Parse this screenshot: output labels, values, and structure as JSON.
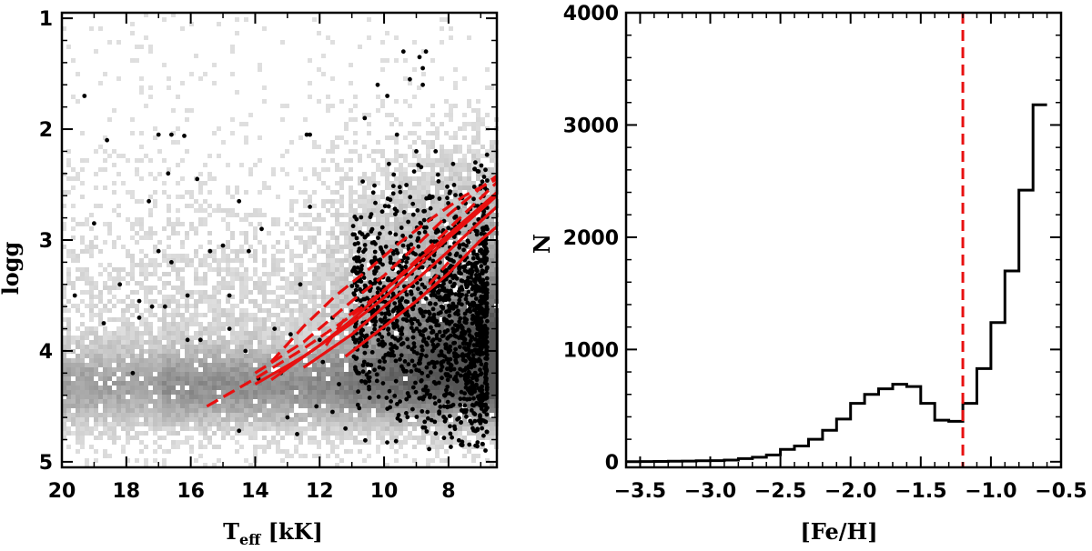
{
  "chart_data": [
    {
      "type": "scatter",
      "panel": "left",
      "xlabel_main": "T",
      "xlabel_sub": "eff",
      "xlabel_unit": " [kK]",
      "ylabel": "logg",
      "xlim": [
        20,
        6.5
      ],
      "ylim": [
        5.05,
        0.95
      ],
      "x_reversed": true,
      "y_reversed": true,
      "xticks": [
        20,
        18,
        16,
        14,
        12,
        10,
        8
      ],
      "yticks": [
        1,
        2,
        3,
        4,
        5
      ],
      "background": "grayscale 2D density histogram of full sample",
      "point_color": "#000000",
      "line_color": "#e81010",
      "sparse_points": [
        [
          19.3,
          1.7
        ],
        [
          18.6,
          2.1
        ],
        [
          17.0,
          2.05
        ],
        [
          16.6,
          2.05
        ],
        [
          16.2,
          2.06
        ],
        [
          17.3,
          2.65
        ],
        [
          16.7,
          2.4
        ],
        [
          15.8,
          2.45
        ],
        [
          19.0,
          2.85
        ],
        [
          17.0,
          3.1
        ],
        [
          14.5,
          2.65
        ],
        [
          13.8,
          2.9
        ],
        [
          12.4,
          2.05
        ],
        [
          12.3,
          2.05
        ],
        [
          12.3,
          2.7
        ],
        [
          15.0,
          3.05
        ],
        [
          19.6,
          3.5
        ],
        [
          18.2,
          3.4
        ],
        [
          17.6,
          3.55
        ],
        [
          16.1,
          3.5
        ],
        [
          16.8,
          3.6
        ],
        [
          17.2,
          3.6
        ],
        [
          18.7,
          3.75
        ],
        [
          17.8,
          4.2
        ],
        [
          16.1,
          3.9
        ],
        [
          15.7,
          3.9
        ],
        [
          14.8,
          3.5
        ],
        [
          14.2,
          3.1
        ],
        [
          14.8,
          3.8
        ],
        [
          14.3,
          4.0
        ],
        [
          13.9,
          4.25
        ],
        [
          13.4,
          3.8
        ],
        [
          13.2,
          4.2
        ],
        [
          12.9,
          3.85
        ],
        [
          12.6,
          3.4
        ],
        [
          12.0,
          3.9
        ],
        [
          11.6,
          3.7
        ],
        [
          11.9,
          4.1
        ],
        [
          11.4,
          4.3
        ],
        [
          14.5,
          4.72
        ],
        [
          13.0,
          4.6
        ],
        [
          12.7,
          4.75
        ],
        [
          12.1,
          4.5
        ],
        [
          11.6,
          4.55
        ],
        [
          11.2,
          4.7
        ],
        [
          15.4,
          3.1
        ],
        [
          16.6,
          3.2
        ],
        [
          17.6,
          3.7
        ]
      ],
      "dense_region": {
        "teff_range": [
          6.8,
          11.0
        ],
        "logg_range": [
          2.2,
          4.9
        ]
      },
      "top_points": [
        [
          9.4,
          1.3
        ],
        [
          8.9,
          1.35
        ],
        [
          8.7,
          1.3
        ],
        [
          8.8,
          1.45
        ],
        [
          8.8,
          1.6
        ],
        [
          9.2,
          1.55
        ],
        [
          10.2,
          1.6
        ],
        [
          10.6,
          1.9
        ],
        [
          9.9,
          1.7
        ],
        [
          8.4,
          2.2
        ],
        [
          9.6,
          2.05
        ],
        [
          9.0,
          2.2
        ]
      ],
      "curves": [
        {
          "style": "dashed",
          "points": [
            [
              15.5,
              4.5
            ],
            [
              14.0,
              4.25
            ],
            [
              12.5,
              3.98
            ],
            [
              11.0,
              3.68
            ],
            [
              10.0,
              3.45
            ],
            [
              9.0,
              3.18
            ],
            [
              8.0,
              2.9
            ],
            [
              7.0,
              2.62
            ],
            [
              6.5,
              2.48
            ]
          ]
        },
        {
          "style": "dashed",
          "points": [
            [
              14.0,
              4.2
            ],
            [
              12.5,
              3.92
            ],
            [
              11.0,
              3.55
            ],
            [
              10.0,
              3.32
            ],
            [
              9.0,
              3.05
            ],
            [
              8.0,
              2.77
            ],
            [
              7.0,
              2.53
            ],
            [
              6.5,
              2.42
            ]
          ]
        },
        {
          "style": "dashed",
          "points": [
            [
              13.5,
              4.1
            ],
            [
              12.5,
              3.78
            ],
            [
              11.5,
              3.5
            ],
            [
              10.5,
              3.27
            ],
            [
              9.5,
              3.02
            ],
            [
              8.5,
              2.8
            ],
            [
              7.5,
              2.6
            ],
            [
              6.5,
              2.45
            ]
          ]
        },
        {
          "style": "solid",
          "points": [
            [
              14.0,
              4.3
            ],
            [
              12.5,
              4.05
            ],
            [
              11.0,
              3.75
            ],
            [
              10.0,
              3.52
            ],
            [
              9.0,
              3.25
            ],
            [
              8.0,
              2.98
            ],
            [
              7.0,
              2.73
            ],
            [
              6.5,
              2.6
            ]
          ]
        },
        {
          "style": "solid",
          "points": [
            [
              13.5,
              4.26
            ],
            [
              12.0,
              3.95
            ],
            [
              11.0,
              3.72
            ],
            [
              10.0,
              3.46
            ],
            [
              9.0,
              3.2
            ],
            [
              8.0,
              2.95
            ],
            [
              7.0,
              2.7
            ],
            [
              6.5,
              2.57
            ]
          ]
        },
        {
          "style": "solid",
          "points": [
            [
              12.5,
              4.15
            ],
            [
              11.0,
              3.85
            ],
            [
              10.0,
              3.6
            ],
            [
              9.0,
              3.36
            ],
            [
              8.0,
              3.1
            ],
            [
              7.0,
              2.83
            ],
            [
              6.5,
              2.7
            ]
          ]
        },
        {
          "style": "solid",
          "points": [
            [
              11.2,
              4.05
            ],
            [
              10.0,
              3.78
            ],
            [
              9.0,
              3.55
            ],
            [
              8.0,
              3.3
            ],
            [
              7.0,
              3.0
            ],
            [
              6.5,
              2.88
            ]
          ]
        },
        {
          "style": "dashed",
          "points": [
            [
              11.8,
              3.95
            ],
            [
              11.2,
              3.7
            ],
            [
              10.6,
              3.58
            ]
          ]
        },
        {
          "style": "dashed",
          "points": [
            [
              8.6,
              3.4
            ],
            [
              8.3,
              3.3
            ],
            [
              8.0,
              3.2
            ]
          ]
        }
      ]
    },
    {
      "type": "histogram",
      "panel": "right",
      "xlabel": "[Fe/H]",
      "ylabel": "N",
      "xlim": [
        -3.6,
        -0.5
      ],
      "ylim": [
        -50,
        4000
      ],
      "xticks": [
        -3.5,
        -3.0,
        -2.5,
        -2.0,
        -1.5,
        -1.0,
        -0.5
      ],
      "xtick_labels": [
        "−3.5",
        "−3.0",
        "−2.5",
        "−2.0",
        "−1.5",
        "−1.0",
        "−0.5"
      ],
      "yticks": [
        0,
        1000,
        2000,
        3000,
        4000
      ],
      "bin_width": 0.1,
      "bin_start": -3.6,
      "counts": [
        0,
        2,
        3,
        5,
        6,
        8,
        10,
        15,
        28,
        40,
        60,
        110,
        140,
        200,
        280,
        380,
        520,
        600,
        650,
        690,
        670,
        520,
        370,
        360,
        520,
        830,
        1240,
        1700,
        2420,
        3180
      ],
      "vline": {
        "x": -1.2,
        "style": "dashed",
        "color": "#e81010"
      },
      "line_color": "#000000"
    }
  ]
}
